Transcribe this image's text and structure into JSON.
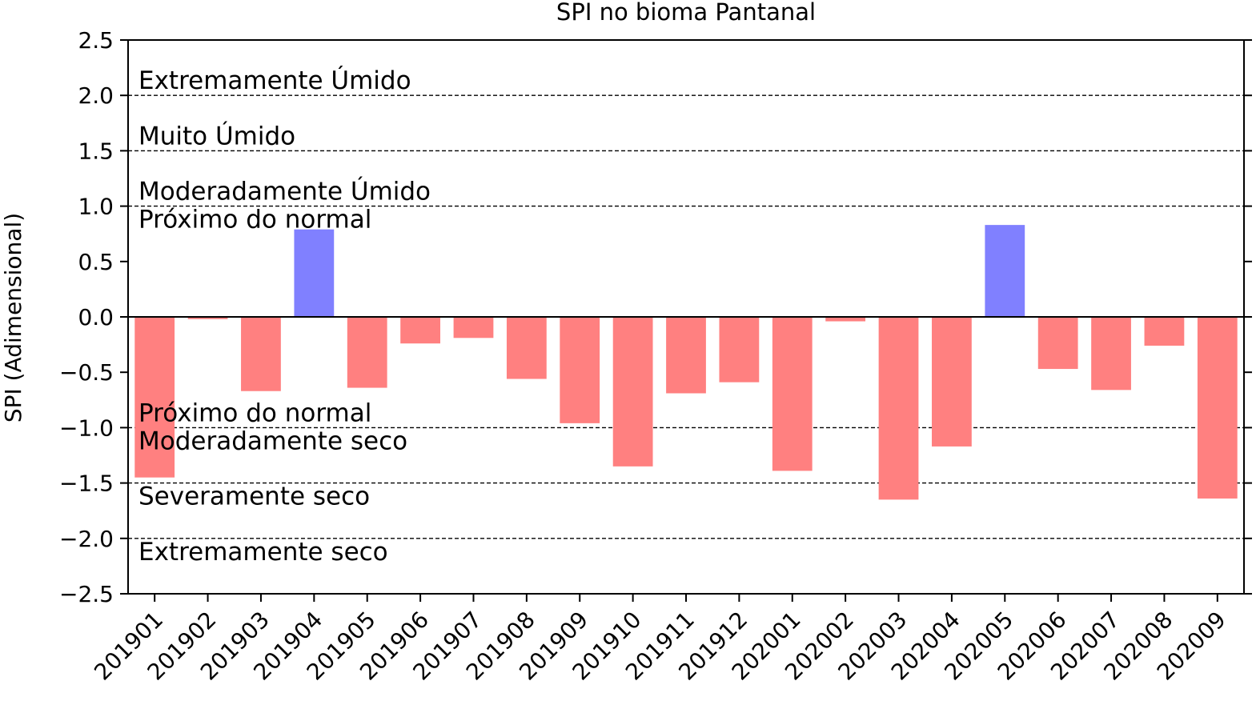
{
  "chart_data": {
    "type": "bar",
    "title": "SPI no bioma Pantanal",
    "xlabel": "",
    "ylabel": "SPI (Adimensional)",
    "ylim": [
      -2.5,
      2.5
    ],
    "yticks": [
      2.5,
      2.0,
      1.5,
      1.0,
      0.5,
      0.0,
      -0.5,
      -1.0,
      -1.5,
      -2.0,
      -2.5
    ],
    "ytick_labels": [
      "2.5",
      "2.0",
      "1.5",
      "1.0",
      "0.5",
      "0.0",
      "−0.5",
      "−1.0",
      "−1.5",
      "−2.0",
      "−2.5"
    ],
    "categories": [
      "201901",
      "201902",
      "201903",
      "201904",
      "201905",
      "201906",
      "201907",
      "201908",
      "201909",
      "201910",
      "201911",
      "201912",
      "202001",
      "202002",
      "202003",
      "202004",
      "202005",
      "202006",
      "202007",
      "202008",
      "202009"
    ],
    "values": [
      -1.45,
      -0.02,
      -0.67,
      0.79,
      -0.64,
      -0.24,
      -0.19,
      -0.56,
      -0.96,
      -1.35,
      -0.69,
      -0.59,
      -1.39,
      -0.04,
      -1.65,
      -1.17,
      0.83,
      -0.47,
      -0.66,
      -0.26,
      -1.64
    ],
    "colors": {
      "positive": "#8080ff",
      "negative": "#ff8080"
    },
    "threshold_lines": [
      2.0,
      1.5,
      1.0,
      -1.0,
      -1.5,
      -2.0
    ],
    "annotations": [
      {
        "text": "Extremamente Úmido",
        "y": 2.0,
        "place": "above"
      },
      {
        "text": "Muito Úmido",
        "y": 1.5,
        "place": "above"
      },
      {
        "text": "Moderadamente Úmido",
        "y": 1.0,
        "place": "above"
      },
      {
        "text": "Próximo do normal",
        "y": 1.0,
        "place": "below"
      },
      {
        "text": "Próximo do normal",
        "y": -1.0,
        "place": "above"
      },
      {
        "text": "Moderadamente seco",
        "y": -1.0,
        "place": "below"
      },
      {
        "text": "Severamente seco",
        "y": -1.5,
        "place": "below"
      },
      {
        "text": "Extremamente seco",
        "y": -2.0,
        "place": "below"
      }
    ],
    "grid": false,
    "legend": "none"
  }
}
